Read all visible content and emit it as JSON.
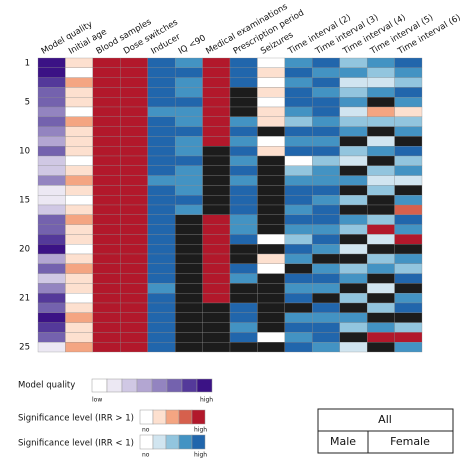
{
  "chart_data": {
    "type": "heatmap",
    "categories": [
      "1",
      null,
      null,
      null,
      "5",
      null,
      null,
      null,
      null,
      "10",
      null,
      null,
      null,
      null,
      "15",
      null,
      null,
      null,
      null,
      "20",
      null,
      null,
      null,
      null,
      "21",
      null,
      null,
      null,
      null,
      "25"
    ],
    "series": [
      {
        "name": "Model quality",
        "values": [
          8,
          8,
          7,
          6,
          6,
          5,
          6,
          5,
          4,
          6,
          3,
          3,
          5,
          2,
          2,
          3,
          6,
          6,
          7,
          8,
          4,
          6,
          3,
          5,
          7,
          6,
          8,
          7,
          6,
          2
        ]
      },
      {
        "name": "Initial age",
        "values": [
          1,
          0,
          2,
          1,
          1,
          0,
          2,
          1,
          1,
          1,
          0,
          1,
          2,
          1,
          0,
          1,
          2,
          1,
          1,
          0,
          1,
          2,
          1,
          1,
          0,
          1,
          2,
          1,
          1,
          2
        ]
      },
      {
        "name": "Blood samples",
        "values": [
          4,
          4,
          4,
          4,
          4,
          4,
          4,
          4,
          4,
          4,
          4,
          4,
          4,
          4,
          4,
          4,
          4,
          4,
          4,
          4,
          4,
          4,
          4,
          4,
          4,
          4,
          4,
          4,
          4,
          4
        ]
      },
      {
        "name": "Dose switches",
        "values": [
          4,
          4,
          4,
          4,
          4,
          4,
          4,
          4,
          4,
          4,
          4,
          4,
          4,
          4,
          4,
          4,
          4,
          4,
          4,
          4,
          4,
          4,
          4,
          4,
          4,
          4,
          4,
          4,
          4,
          4
        ]
      },
      {
        "name": "Inducer",
        "values": [
          -4,
          -4,
          -4,
          -4,
          -4,
          -3,
          -4,
          -4,
          -4,
          -4,
          -4,
          -4,
          -3,
          -4,
          -4,
          -4,
          -4,
          -4,
          -4,
          -4,
          -4,
          -4,
          -4,
          -3,
          -4,
          -4,
          -4,
          -4,
          -4,
          -4
        ]
      },
      {
        "name": "IQ <90",
        "values": [
          -3,
          -4,
          -3,
          -3,
          -4,
          -3,
          -3,
          -4,
          -3,
          -3,
          -4,
          -3,
          -3,
          -3,
          -4,
          -3,
          null,
          null,
          null,
          null,
          null,
          null,
          null,
          null,
          null,
          null,
          null,
          null,
          null,
          null
        ]
      },
      {
        "name": "Medical examinations",
        "values": [
          4,
          4,
          4,
          4,
          4,
          4,
          4,
          4,
          4,
          null,
          null,
          null,
          null,
          null,
          null,
          null,
          4,
          4,
          4,
          4,
          4,
          4,
          4,
          4,
          4,
          null,
          null,
          null,
          null,
          null
        ]
      },
      {
        "name": "Prescription period",
        "values": [
          -4,
          -4,
          -4,
          null,
          null,
          null,
          -3,
          -4,
          -3,
          -4,
          -3,
          -4,
          -3,
          -4,
          -4,
          -4,
          -3,
          -3,
          -4,
          null,
          null,
          -4,
          -3,
          null,
          null,
          -4,
          -4,
          -3,
          -4,
          null
        ]
      },
      {
        "name": "Seizures",
        "values": [
          0,
          1,
          0,
          1,
          0,
          1,
          1,
          null,
          0,
          1,
          null,
          null,
          null,
          null,
          null,
          null,
          null,
          null,
          0,
          null,
          1,
          0,
          null,
          null,
          null,
          null,
          null,
          null,
          0,
          null
        ]
      },
      {
        "name": "Time interval (2)",
        "values": [
          -3,
          -4,
          -3,
          -4,
          -4,
          -3,
          -2,
          -4,
          -3,
          -4,
          0,
          -2,
          -3,
          -4,
          -4,
          -3,
          -4,
          -3,
          -2,
          -4,
          -3,
          null,
          -4,
          -3,
          -4,
          null,
          -3,
          -4,
          -3,
          -4
        ]
      },
      {
        "name": "Time interval (3)",
        "values": [
          -4,
          -3,
          -4,
          -3,
          -4,
          -4,
          -3,
          -4,
          -3,
          -4,
          -2,
          -3,
          -3,
          -4,
          -3,
          -4,
          -4,
          -3,
          -4,
          -3,
          null,
          -3,
          -4,
          -3,
          null,
          -4,
          -3,
          -4,
          -4,
          -3
        ]
      },
      {
        "name": "Time interval (4)",
        "values": [
          -2,
          -3,
          -1,
          -2,
          -3,
          -1,
          -2,
          -3,
          null,
          -2,
          -1,
          null,
          -3,
          null,
          -2,
          null,
          -3,
          -2,
          null,
          -1,
          null,
          -2,
          -3,
          null,
          -2,
          null,
          -3,
          -2,
          null,
          -1
        ]
      },
      {
        "name": "Time interval (5)",
        "values": [
          -3,
          -2,
          -1,
          -3,
          null,
          2,
          -2,
          null,
          -1,
          -3,
          null,
          -2,
          -1,
          -2,
          null,
          null,
          -2,
          4,
          -1,
          null,
          -2,
          -3,
          null,
          -1,
          null,
          -2,
          null,
          -3,
          4,
          null
        ]
      },
      {
        "name": "Time interval (6)",
        "values": [
          -4,
          -3,
          -2,
          -4,
          -3,
          1,
          -2,
          -3,
          null,
          -4,
          -2,
          -3,
          -1,
          null,
          -3,
          3,
          -4,
          -3,
          4,
          null,
          -3,
          -2,
          -4,
          null,
          -3,
          -4,
          null,
          -2,
          4,
          -3
        ]
      }
    ],
    "quality_colors": [
      "#ffffff",
      "#ece8f3",
      "#d0c8e4",
      "#b3a6d2",
      "#9384c0",
      "#7462ae",
      "#54399a",
      "#3b1285"
    ],
    "positive_colors": [
      "#ffffff",
      "#fde0cf",
      "#f4a582",
      "#d6604d",
      "#b2182b"
    ],
    "negative_colors": [
      "#ffffff",
      "#d1e5f0",
      "#92c5de",
      "#4393c3",
      "#2166ac"
    ],
    "missing_color": "#1c1c1c",
    "quality_legend": {
      "title": "Model quality",
      "low": "low",
      "high": "high"
    },
    "positive_legend": {
      "title": "Significance level (IRR > 1)",
      "low": "no",
      "high": "high"
    },
    "negative_legend": {
      "title": "Significance level (IRR < 1)",
      "low": "no",
      "high": "high"
    },
    "sex_legend": {
      "all": "All",
      "male": "Male",
      "female": "Female"
    }
  }
}
